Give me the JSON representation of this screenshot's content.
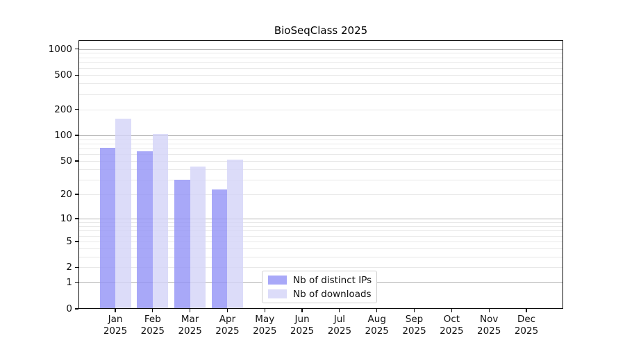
{
  "title": "BioSeqClass 2025",
  "colors": {
    "background": "#ffffff",
    "axis": "#0a0a0a",
    "major_grid": "#b2b2b2",
    "minor_grid": "#e8e8e8",
    "distinct_ips": "#9292f6",
    "downloads": "#d3d3f7"
  },
  "chart_data": {
    "type": "bar",
    "title": "BioSeqClass 2025",
    "xlabel": "",
    "ylabel": "",
    "yscale": "log1p",
    "grid": true,
    "legend_position": "bottom-center",
    "ylim": [
      0,
      1265
    ],
    "yticks": [
      0,
      1,
      2,
      5,
      10,
      20,
      50,
      100,
      200,
      500,
      1000
    ],
    "major_gridlines": [
      1,
      10,
      100,
      1000
    ],
    "minor_gridline_mantissas": [
      2,
      3,
      4,
      5,
      6,
      7,
      8,
      9
    ],
    "minor_gridline_decades": [
      1,
      10,
      100
    ],
    "categories": [
      {
        "month": "Jan",
        "year": "2025"
      },
      {
        "month": "Feb",
        "year": "2025"
      },
      {
        "month": "Mar",
        "year": "2025"
      },
      {
        "month": "Apr",
        "year": "2025"
      },
      {
        "month": "May",
        "year": "2025"
      },
      {
        "month": "Jun",
        "year": "2025"
      },
      {
        "month": "Jul",
        "year": "2025"
      },
      {
        "month": "Aug",
        "year": "2025"
      },
      {
        "month": "Sep",
        "year": "2025"
      },
      {
        "month": "Oct",
        "year": "2025"
      },
      {
        "month": "Nov",
        "year": "2025"
      },
      {
        "month": "Dec",
        "year": "2025"
      }
    ],
    "series": [
      {
        "name": "Nb of distinct IPs",
        "color": "#9292f6",
        "values": [
          72,
          65,
          30,
          23,
          null,
          null,
          null,
          null,
          null,
          null,
          null,
          null
        ]
      },
      {
        "name": "Nb of downloads",
        "color": "#d3d3f7",
        "values": [
          155,
          103,
          43,
          52,
          null,
          null,
          null,
          null,
          null,
          null,
          null,
          null
        ]
      }
    ],
    "bar_opacity": 0.8
  }
}
